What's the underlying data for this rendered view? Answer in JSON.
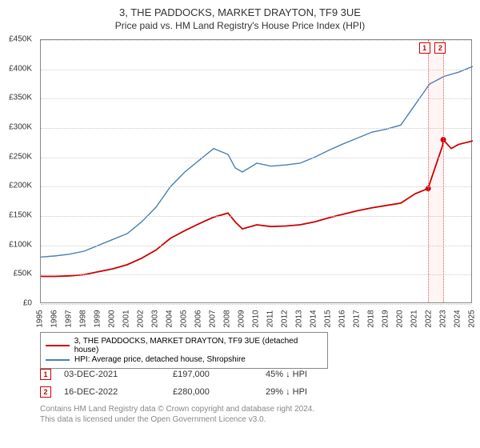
{
  "title": "3, THE PADDOCKS, MARKET DRAYTON, TF9 3UE",
  "subtitle": "Price paid vs. HM Land Registry's House Price Index (HPI)",
  "chart": {
    "type": "line",
    "background_color": "#ffffff",
    "grid_color": "#cccccc",
    "axis_color": "#888888",
    "label_fontsize": 10,
    "x": {
      "min": 1995,
      "max": 2025,
      "tick_step": 1,
      "ticks": [
        1995,
        1996,
        1997,
        1998,
        1999,
        2000,
        2001,
        2002,
        2003,
        2004,
        2005,
        2006,
        2007,
        2008,
        2009,
        2010,
        2011,
        2012,
        2013,
        2014,
        2015,
        2016,
        2017,
        2018,
        2019,
        2020,
        2021,
        2022,
        2023,
        2024,
        2025
      ]
    },
    "y": {
      "min": 0,
      "max": 450000,
      "tick_step": 50000,
      "ticks": [
        0,
        50000,
        100000,
        150000,
        200000,
        250000,
        300000,
        350000,
        400000,
        450000
      ],
      "tick_labels": [
        "£0",
        "£50K",
        "£100K",
        "£150K",
        "£200K",
        "£250K",
        "£300K",
        "£350K",
        "£400K",
        "£450K"
      ]
    },
    "highlight_band": {
      "x_start": 2021.9,
      "x_end": 2023.0,
      "fill": "rgba(255,0,0,0.04)",
      "border": "#f55"
    },
    "series": [
      {
        "name": "hpi",
        "label": "HPI: Average price, detached house, Shropshire",
        "color": "#4a7fb5",
        "line_width": 1.4,
        "points": [
          [
            1995,
            80000
          ],
          [
            1996,
            82000
          ],
          [
            1997,
            85000
          ],
          [
            1998,
            90000
          ],
          [
            1999,
            100000
          ],
          [
            2000,
            110000
          ],
          [
            2001,
            120000
          ],
          [
            2002,
            140000
          ],
          [
            2003,
            165000
          ],
          [
            2004,
            200000
          ],
          [
            2005,
            225000
          ],
          [
            2006,
            245000
          ],
          [
            2007,
            265000
          ],
          [
            2008,
            255000
          ],
          [
            2008.5,
            232000
          ],
          [
            2009,
            225000
          ],
          [
            2010,
            240000
          ],
          [
            2011,
            235000
          ],
          [
            2012,
            237000
          ],
          [
            2013,
            240000
          ],
          [
            2014,
            250000
          ],
          [
            2015,
            262000
          ],
          [
            2016,
            273000
          ],
          [
            2017,
            283000
          ],
          [
            2018,
            293000
          ],
          [
            2019,
            298000
          ],
          [
            2020,
            305000
          ],
          [
            2021,
            340000
          ],
          [
            2022,
            375000
          ],
          [
            2023,
            388000
          ],
          [
            2024,
            395000
          ],
          [
            2025,
            405000
          ]
        ]
      },
      {
        "name": "price_paid",
        "label": "3, THE PADDOCKS, MARKET DRAYTON, TF9 3UE (detached house)",
        "color": "#cc0000",
        "line_width": 1.8,
        "points": [
          [
            1995,
            47000
          ],
          [
            1996,
            47000
          ],
          [
            1997,
            48000
          ],
          [
            1998,
            50000
          ],
          [
            1999,
            55000
          ],
          [
            2000,
            60000
          ],
          [
            2001,
            67000
          ],
          [
            2002,
            78000
          ],
          [
            2003,
            92000
          ],
          [
            2004,
            112000
          ],
          [
            2005,
            125000
          ],
          [
            2006,
            137000
          ],
          [
            2007,
            148000
          ],
          [
            2008,
            155000
          ],
          [
            2008.5,
            140000
          ],
          [
            2009,
            128000
          ],
          [
            2010,
            135000
          ],
          [
            2011,
            132000
          ],
          [
            2012,
            133000
          ],
          [
            2013,
            135000
          ],
          [
            2014,
            140000
          ],
          [
            2015,
            147000
          ],
          [
            2016,
            153000
          ],
          [
            2017,
            159000
          ],
          [
            2018,
            164000
          ],
          [
            2019,
            168000
          ],
          [
            2020,
            172000
          ],
          [
            2021,
            188000
          ],
          [
            2021.9,
            197000
          ],
          [
            2022,
            205000
          ],
          [
            2022.9,
            270000
          ],
          [
            2022.95,
            280000
          ],
          [
            2023.5,
            265000
          ],
          [
            2024,
            272000
          ],
          [
            2025,
            278000
          ]
        ]
      }
    ],
    "markers": [
      {
        "n": "1",
        "x": 2021.9,
        "y": 197000,
        "color": "#cc0000",
        "label_x": 2021.7,
        "label_y": 445000
      },
      {
        "n": "2",
        "x": 2022.95,
        "y": 280000,
        "color": "#cc0000",
        "label_x": 2022.8,
        "label_y": 445000
      }
    ]
  },
  "legend": [
    {
      "color": "#cc0000",
      "label": "3, THE PADDOCKS, MARKET DRAYTON, TF9 3UE (detached house)"
    },
    {
      "color": "#4a7fb5",
      "label": "HPI: Average price, detached house, Shropshire"
    }
  ],
  "sales": [
    {
      "n": "1",
      "date": "03-DEC-2021",
      "price": "£197,000",
      "delta": "45% ↓ HPI"
    },
    {
      "n": "2",
      "date": "16-DEC-2022",
      "price": "£280,000",
      "delta": "29% ↓ HPI"
    }
  ],
  "footer_lines": [
    "Contains HM Land Registry data © Crown copyright and database right 2024.",
    "This data is licensed under the Open Government Licence v3.0."
  ]
}
